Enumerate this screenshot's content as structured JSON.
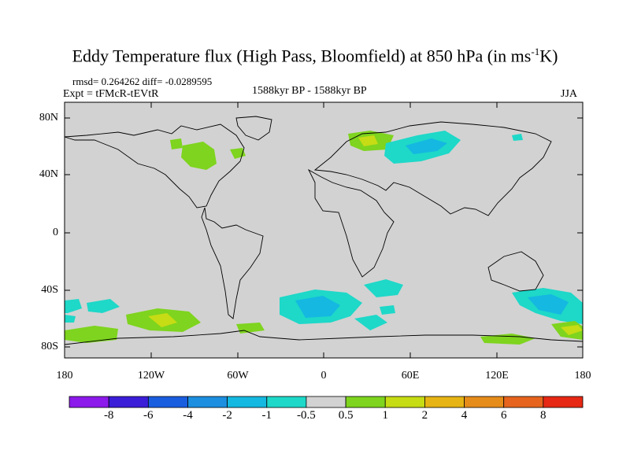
{
  "title": {
    "main": "Eddy Temperature flux (High Pass, Bloomfield) at 850 hPa (in ms",
    "sup": "-1",
    "unit_tail": "K)"
  },
  "stats": "rmsd= 0.264262  diff= -0.0289595",
  "experiment": "Expt = tFMcR-tEVtR",
  "period": "1588kyr BP - 1588kyr BP",
  "season": "JJA",
  "lat_labels": [
    "80N",
    "40N",
    "0",
    "40S",
    "80S"
  ],
  "lon_labels": [
    "180",
    "120W",
    "60W",
    "0",
    "60E",
    "120E",
    "180"
  ],
  "colorbar": {
    "labels": [
      "-8",
      "-6",
      "-4",
      "-2",
      "-1",
      "-0.5",
      "0.5",
      "1",
      "2",
      "4",
      "6",
      "8"
    ],
    "colors": [
      "#8c1aeb",
      "#3b1ed8",
      "#1a5ee0",
      "#1c8fe0",
      "#14b8e0",
      "#1ed8c8",
      "#d2d2d2",
      "#7ed41e",
      "#c6dc14",
      "#e6b414",
      "#e68c1a",
      "#e6641e",
      "#e62814"
    ]
  },
  "colors": {
    "land_ocean_bg": "#d2d2d2",
    "neg_weak": "#1ed8c8",
    "neg_mod": "#14b8e0",
    "pos_weak": "#7ed41e",
    "pos_mod": "#c6dc14"
  }
}
